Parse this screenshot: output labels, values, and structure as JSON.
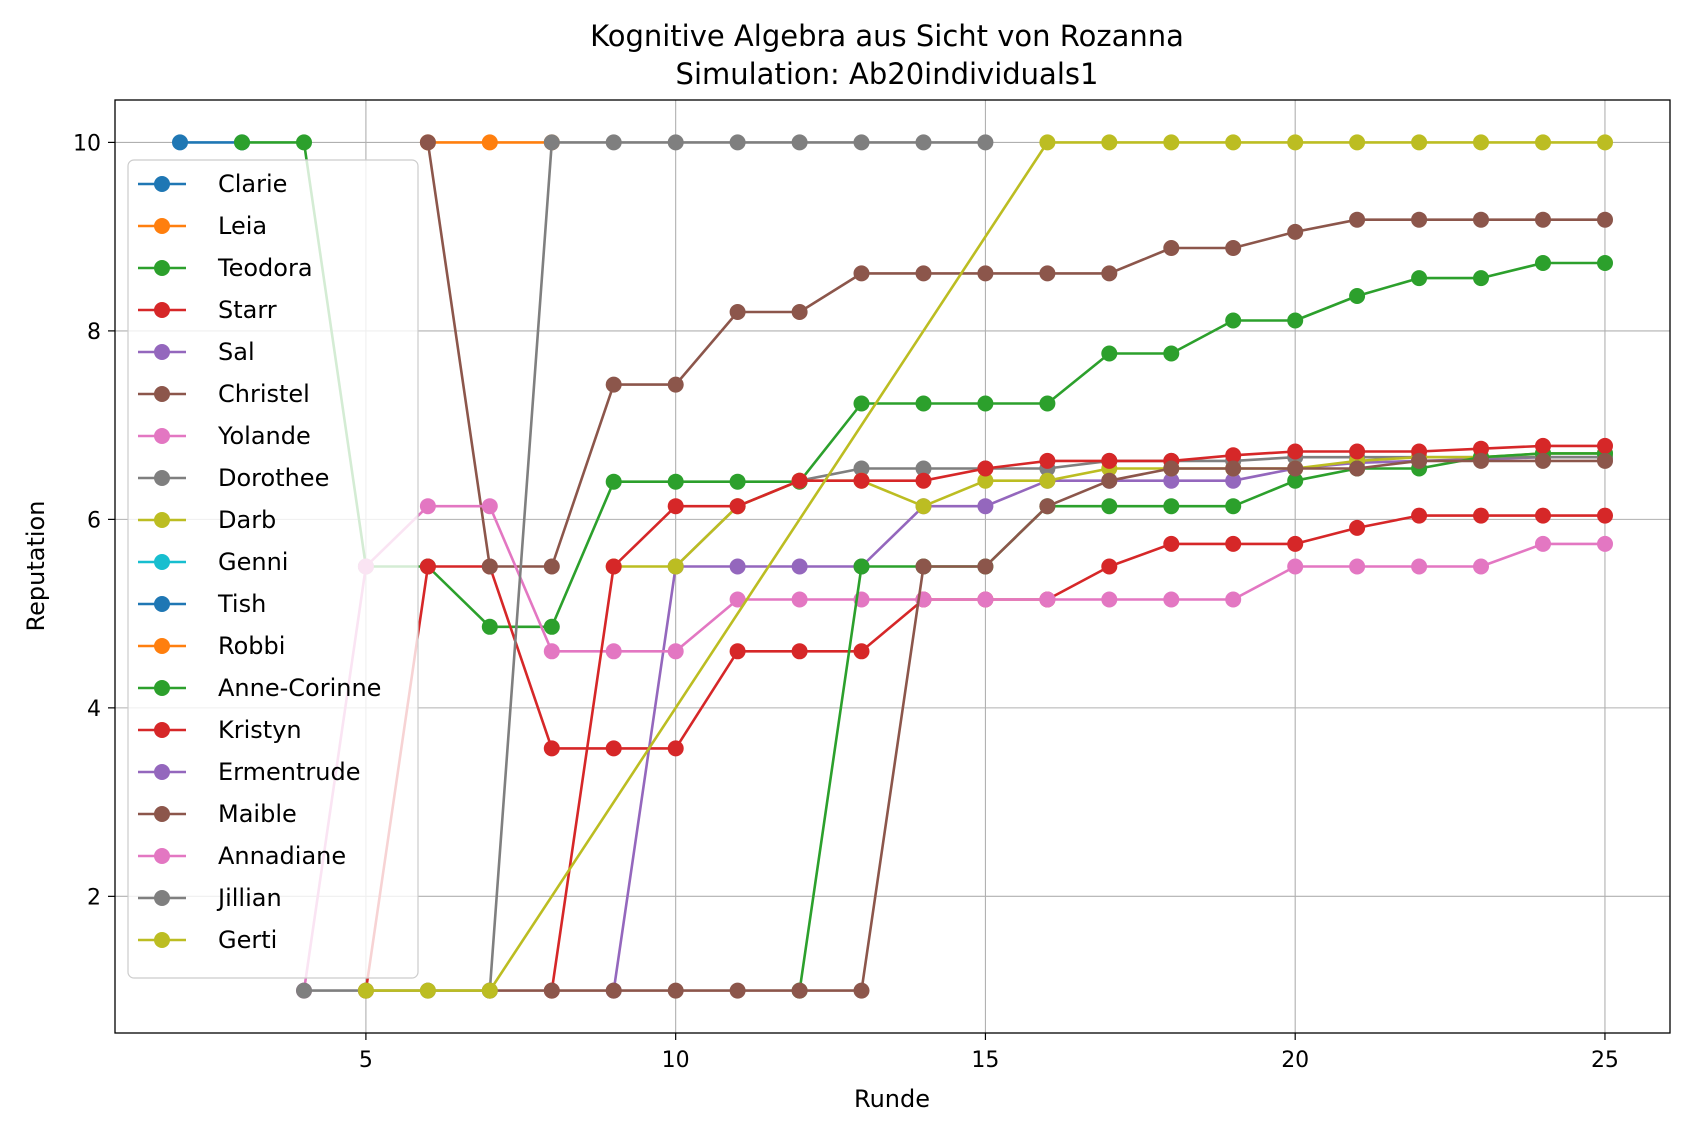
{
  "chart_data": {
    "type": "line",
    "title": "Kognitive Algebra aus Sicht von Rozanna",
    "subtitle": "Simulation: Ab20individuals1",
    "xlabel": "Runde",
    "ylabel": "Reputation",
    "xlim": [
      0.95,
      26.05
    ],
    "ylim": [
      0.55,
      10.45
    ],
    "xticks": [
      5,
      10,
      15,
      20,
      25
    ],
    "yticks": [
      2,
      4,
      6,
      8,
      10
    ],
    "grid": true,
    "legend_position": "left",
    "series": [
      {
        "name": "Clarie",
        "color": "#1f77b4",
        "x": [
          2,
          3
        ],
        "y": [
          10,
          10
        ]
      },
      {
        "name": "Leia",
        "color": "#ff7f0e",
        "x": [
          6,
          7,
          8
        ],
        "y": [
          10,
          10,
          10
        ]
      },
      {
        "name": "Teodora",
        "color": "#2ca02c",
        "x": [
          3,
          4,
          5,
          6,
          7,
          8,
          9,
          10,
          11,
          12,
          13,
          14,
          15,
          16,
          17,
          18,
          19,
          20,
          21,
          22,
          23,
          24,
          25
        ],
        "y": [
          10,
          10,
          5.5,
          5.5,
          4.86,
          4.86,
          6.4,
          6.4,
          6.4,
          6.4,
          7.23,
          7.23,
          7.23,
          7.23,
          7.76,
          7.76,
          8.11,
          8.11,
          8.37,
          8.56,
          8.56,
          8.72,
          8.72
        ]
      },
      {
        "name": "Starr",
        "color": "#d62728",
        "x": [
          5,
          6,
          7,
          8,
          9,
          10,
          11,
          12,
          13,
          14,
          15,
          16,
          17,
          18,
          19,
          20,
          21,
          22,
          23,
          24,
          25
        ],
        "y": [
          1,
          5.5,
          5.5,
          3.57,
          3.57,
          3.57,
          4.6,
          4.6,
          4.6,
          5.15,
          5.15,
          5.15,
          5.5,
          5.74,
          5.74,
          5.74,
          5.91,
          6.04,
          6.04,
          6.04,
          6.04
        ]
      },
      {
        "name": "Sal",
        "color": "#9467bd",
        "x": [
          9,
          10,
          11,
          12,
          13,
          14,
          15,
          16,
          17,
          18,
          19,
          20,
          21,
          22,
          23,
          24,
          25
        ],
        "y": [
          1,
          5.5,
          5.5,
          5.5,
          5.5,
          6.14,
          6.14,
          6.41,
          6.41,
          6.41,
          6.41,
          6.54,
          6.6,
          6.62,
          6.64,
          6.66,
          6.66
        ]
      },
      {
        "name": "Christel",
        "color": "#8c564b",
        "x": [
          6,
          7,
          8,
          9,
          10,
          11,
          12,
          13,
          14,
          15,
          16,
          17,
          18,
          19,
          20,
          21,
          22,
          23,
          24,
          25
        ],
        "y": [
          10,
          5.5,
          5.5,
          7.43,
          7.43,
          8.2,
          8.2,
          8.61,
          8.61,
          8.61,
          8.61,
          8.61,
          8.88,
          8.88,
          9.05,
          9.18,
          9.18,
          9.18,
          9.18,
          9.18
        ]
      },
      {
        "name": "Yolande",
        "color": "#e377c2",
        "x": [
          4,
          5,
          6,
          7,
          8,
          9,
          10,
          11,
          12,
          13,
          14,
          15,
          16,
          17,
          18,
          19,
          20,
          21,
          22,
          23,
          24,
          25
        ],
        "y": [
          1,
          5.5,
          6.14,
          6.14,
          4.6,
          4.6,
          4.6,
          5.15,
          5.15,
          5.15,
          5.15,
          5.15,
          5.15,
          5.15,
          5.15,
          5.15,
          5.5,
          5.5,
          5.5,
          5.5,
          5.74,
          5.74
        ]
      },
      {
        "name": "Dorothee",
        "color": "#7f7f7f",
        "x": [
          10,
          11,
          12,
          13,
          14,
          15,
          16,
          17,
          18,
          19,
          20,
          21,
          22,
          23,
          24,
          25
        ],
        "y": [
          5.5,
          6.14,
          6.41,
          6.54,
          6.54,
          6.54,
          6.54,
          6.62,
          6.62,
          6.62,
          6.66,
          6.66,
          6.66,
          6.66,
          6.66,
          6.66
        ]
      },
      {
        "name": "Darb",
        "color": "#bcbd22",
        "x": [
          9,
          10,
          11,
          12,
          13,
          14,
          15,
          16,
          17,
          18,
          19,
          20,
          21,
          22,
          23,
          24,
          25
        ],
        "y": [
          5.5,
          5.5,
          6.14,
          6.41,
          6.41,
          6.14,
          6.41,
          6.41,
          6.54,
          6.54,
          6.54,
          6.54,
          6.62,
          6.66,
          6.66,
          6.7,
          6.7
        ]
      },
      {
        "name": "Genni",
        "color": "#17becf",
        "x": [],
        "y": []
      },
      {
        "name": "Tish",
        "color": "#1f77b4",
        "x": [],
        "y": []
      },
      {
        "name": "Robbi",
        "color": "#ff7f0e",
        "x": [],
        "y": []
      },
      {
        "name": "Anne-Corinne",
        "color": "#2ca02c",
        "x": [
          12,
          13,
          14,
          15,
          16,
          17,
          18,
          19,
          20,
          21,
          22,
          23,
          24,
          25
        ],
        "y": [
          1,
          5.5,
          5.5,
          5.5,
          6.14,
          6.14,
          6.14,
          6.14,
          6.41,
          6.54,
          6.54,
          6.66,
          6.7,
          6.7
        ]
      },
      {
        "name": "Kristyn",
        "color": "#d62728",
        "x": [
          8,
          9,
          10,
          11,
          12,
          13,
          14,
          15,
          16,
          17,
          18,
          19,
          20,
          21,
          22,
          23,
          24,
          25
        ],
        "y": [
          1,
          5.5,
          6.14,
          6.14,
          6.41,
          6.41,
          6.41,
          6.54,
          6.62,
          6.62,
          6.62,
          6.68,
          6.72,
          6.72,
          6.72,
          6.75,
          6.78,
          6.78
        ]
      },
      {
        "name": "Ermentrude",
        "color": "#9467bd",
        "x": [],
        "y": []
      },
      {
        "name": "Maible",
        "color": "#8c564b",
        "x": [
          7,
          8,
          9,
          10,
          11,
          12,
          13,
          14,
          15,
          16,
          17,
          18,
          19,
          20,
          21,
          22,
          23,
          24,
          25
        ],
        "y": [
          1,
          1,
          1,
          1,
          1,
          1,
          1,
          5.5,
          5.5,
          6.14,
          6.41,
          6.54,
          6.54,
          6.54,
          6.54,
          6.62,
          6.62,
          6.62,
          6.62
        ]
      },
      {
        "name": "Annadiane",
        "color": "#e377c2",
        "x": [],
        "y": []
      },
      {
        "name": "Jillian",
        "color": "#7f7f7f",
        "x": [
          4,
          5,
          6,
          7,
          8,
          9,
          10,
          11,
          12,
          13,
          14,
          15
        ],
        "y": [
          1,
          1,
          1,
          1,
          10,
          10,
          10,
          10,
          10,
          10,
          10,
          10
        ]
      },
      {
        "name": "Gerti",
        "color": "#bcbd22",
        "x": [
          5,
          6,
          7,
          16,
          17,
          18,
          19,
          20,
          21,
          22,
          23,
          24,
          25
        ],
        "y": [
          1,
          1,
          1,
          10,
          10,
          10,
          10,
          10,
          10,
          10,
          10,
          10,
          10
        ]
      }
    ]
  }
}
